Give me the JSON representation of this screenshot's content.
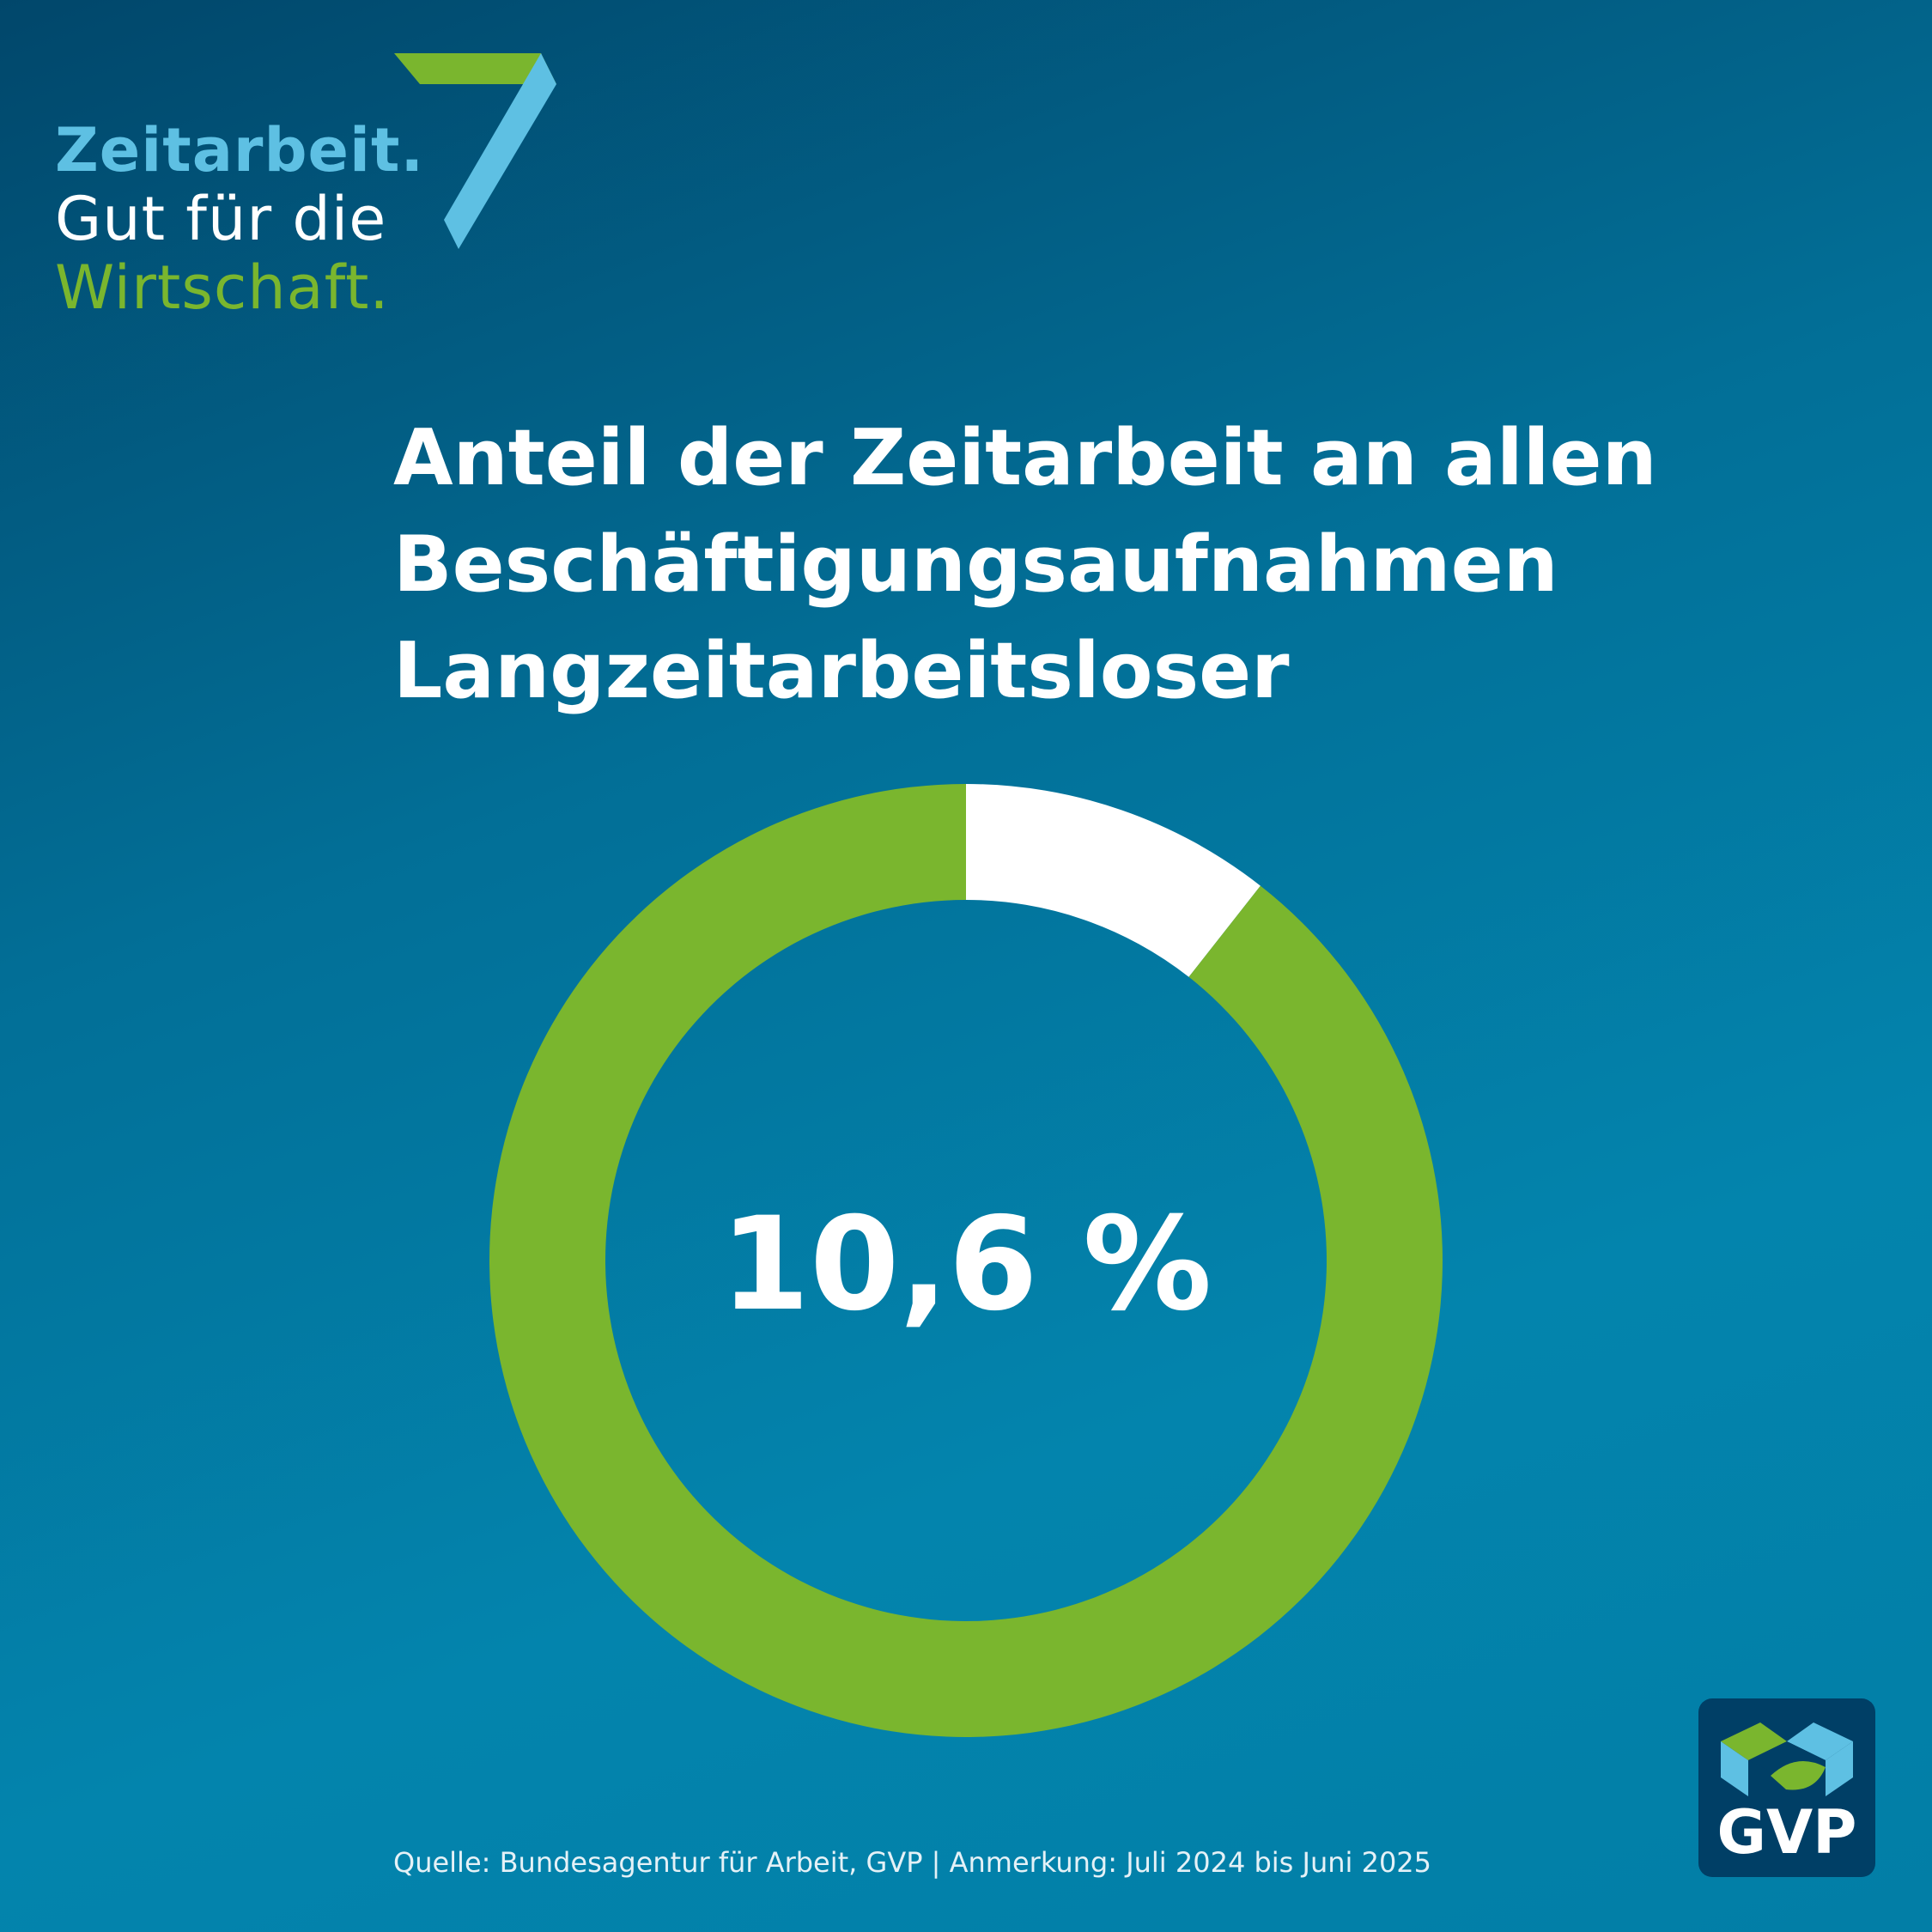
{
  "brand": {
    "line1": "Zeitarbeit.",
    "line2": "Gut für die",
    "line3": "Wirtschaft.",
    "mark_icon": "seven-shape-icon"
  },
  "colors": {
    "accent_blue": "#5ec0e3",
    "accent_green": "#7ab62e",
    "white": "#ffffff",
    "logo_bg": "#003f66"
  },
  "chart_data": {
    "type": "pie",
    "variant": "donut",
    "title": [
      "Anteil der Zeitarbeit an allen",
      "Beschäftigungsaufnahmen",
      "Langzeitarbeitsloser"
    ],
    "value_label": "10,6 %",
    "slices": [
      {
        "value": 10.6,
        "color": "#ffffff"
      },
      {
        "value": 89.4,
        "color": "#7ab62e"
      }
    ]
  },
  "footer": {
    "source": "Quelle: Bundesagentur für Arbeit, GVP | Anmerkung: Juli 2024 bis Juni 2025"
  },
  "logo": {
    "text": "GVP",
    "icon": "gvp-logo-icon"
  }
}
